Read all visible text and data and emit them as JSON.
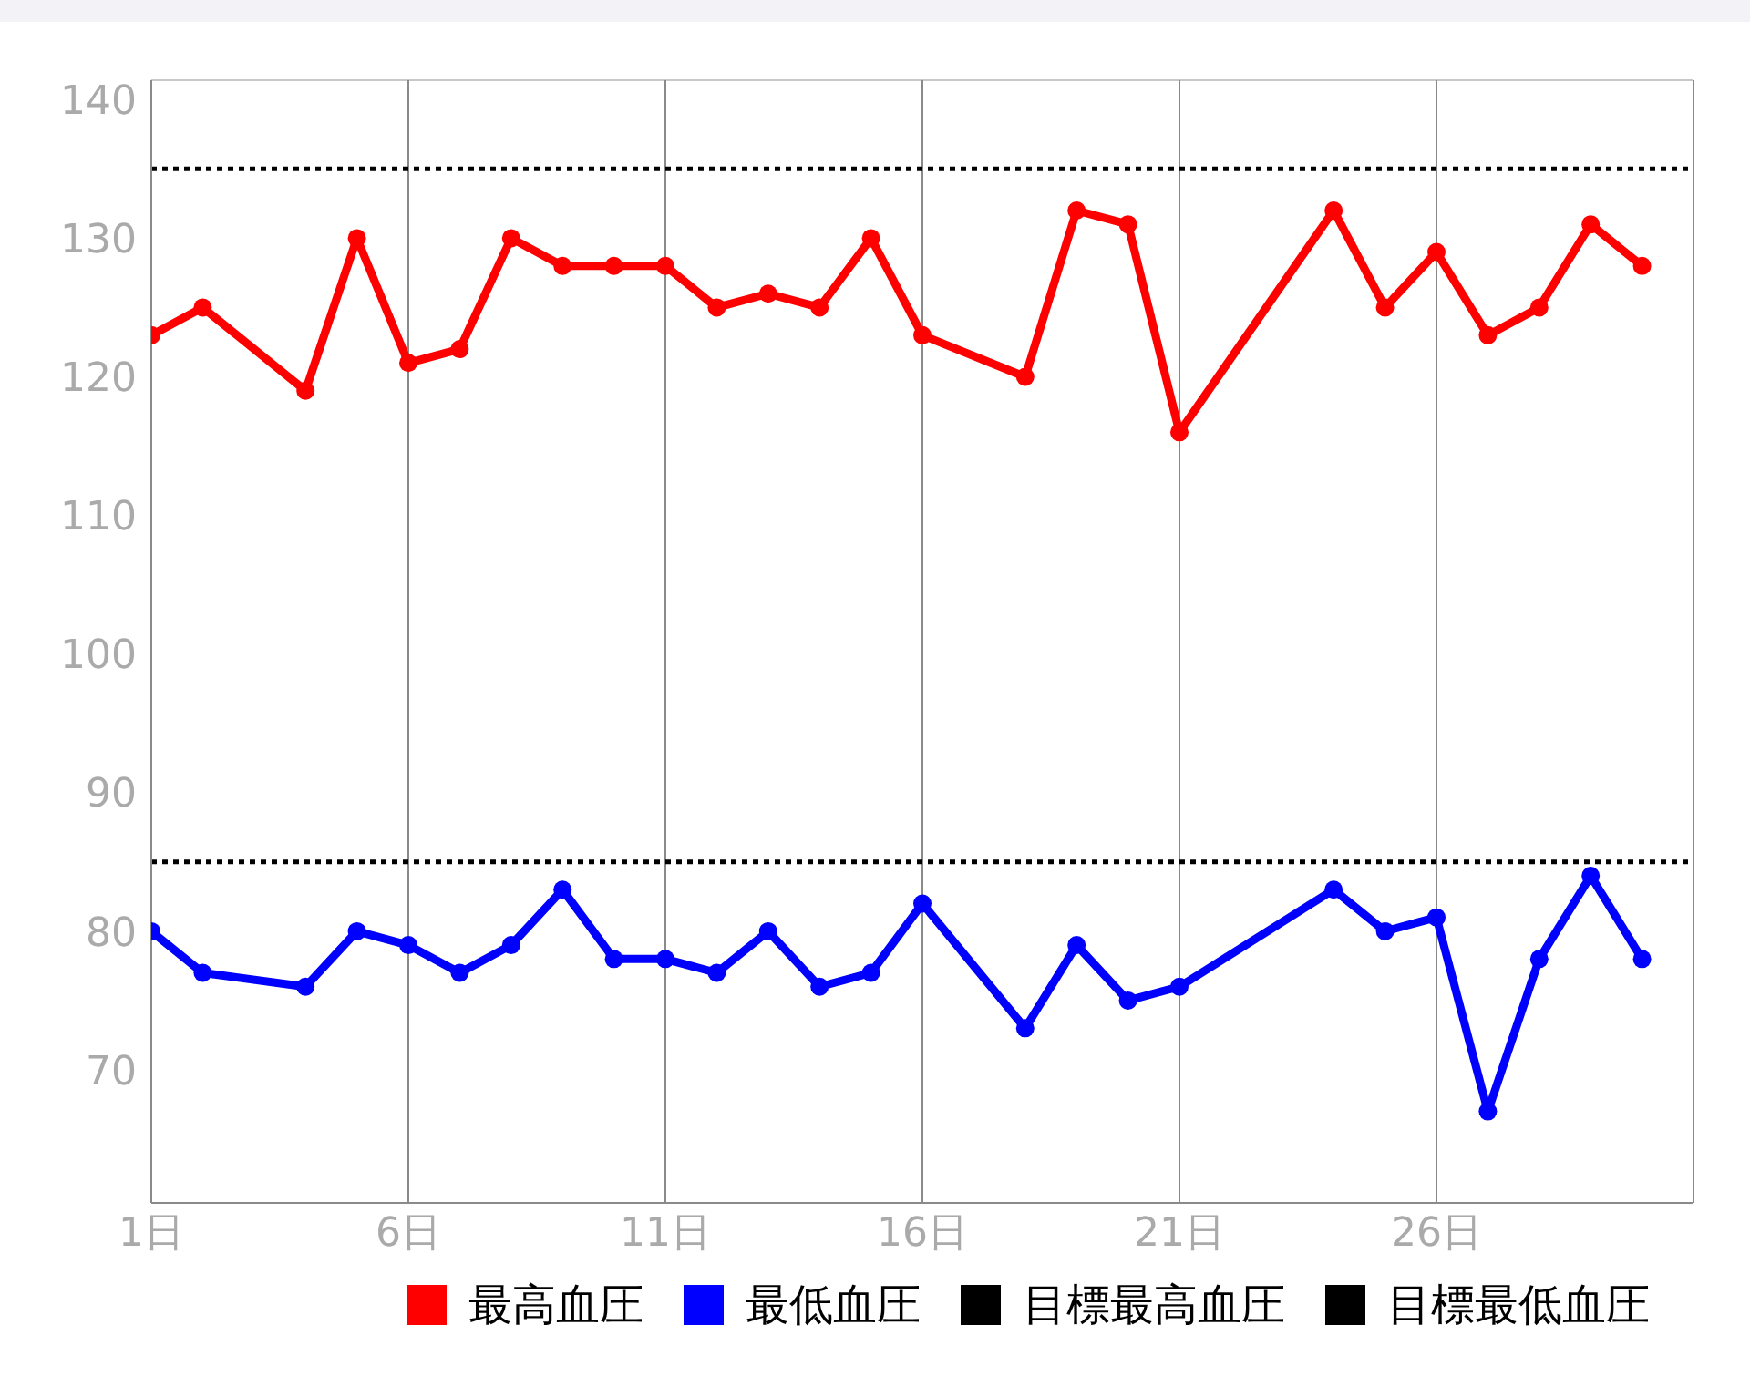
{
  "chart_data": {
    "type": "line",
    "x": [
      1,
      2,
      4,
      5,
      6,
      7,
      8,
      9,
      10,
      11,
      12,
      13,
      14,
      15,
      16,
      18,
      19,
      20,
      21,
      24,
      25,
      26,
      27,
      28,
      29,
      30
    ],
    "series": [
      {
        "name": "最高血圧",
        "color": "#ff0000",
        "values": [
          123,
          125,
          119,
          130,
          121,
          122,
          130,
          128,
          128,
          128,
          125,
          126,
          125,
          130,
          123,
          120,
          132,
          131,
          116,
          132,
          125,
          129,
          123,
          125,
          131,
          128
        ]
      },
      {
        "name": "最低血圧",
        "color": "#0000ff",
        "values": [
          80,
          77,
          76,
          80,
          79,
          77,
          79,
          83,
          78,
          78,
          77,
          80,
          76,
          77,
          82,
          73,
          79,
          75,
          76,
          83,
          80,
          81,
          67,
          78,
          84,
          78
        ]
      }
    ],
    "xlim": [
      1,
      31
    ],
    "xticks": [
      {
        "value": 1,
        "label": "1日"
      },
      {
        "value": 6,
        "label": "6日"
      },
      {
        "value": 11,
        "label": "11日"
      },
      {
        "value": 16,
        "label": "16日"
      },
      {
        "value": 21,
        "label": "21日"
      },
      {
        "value": 26,
        "label": "26日"
      }
    ],
    "ylim": [
      60.4,
      141.4
    ],
    "yticks": [
      70,
      80,
      90,
      100,
      110,
      120,
      130,
      140
    ],
    "ref_lines": [
      {
        "axis": "y",
        "value": 135,
        "label": "目標最高血圧",
        "color": "#000000",
        "line_style": "dotted"
      },
      {
        "axis": "y",
        "value": 85,
        "label": "目標最低血圧",
        "color": "#000000",
        "line_style": "dotted"
      }
    ],
    "grid": true,
    "legend": "bottom",
    "marker": "circle",
    "line_style": "solid"
  }
}
